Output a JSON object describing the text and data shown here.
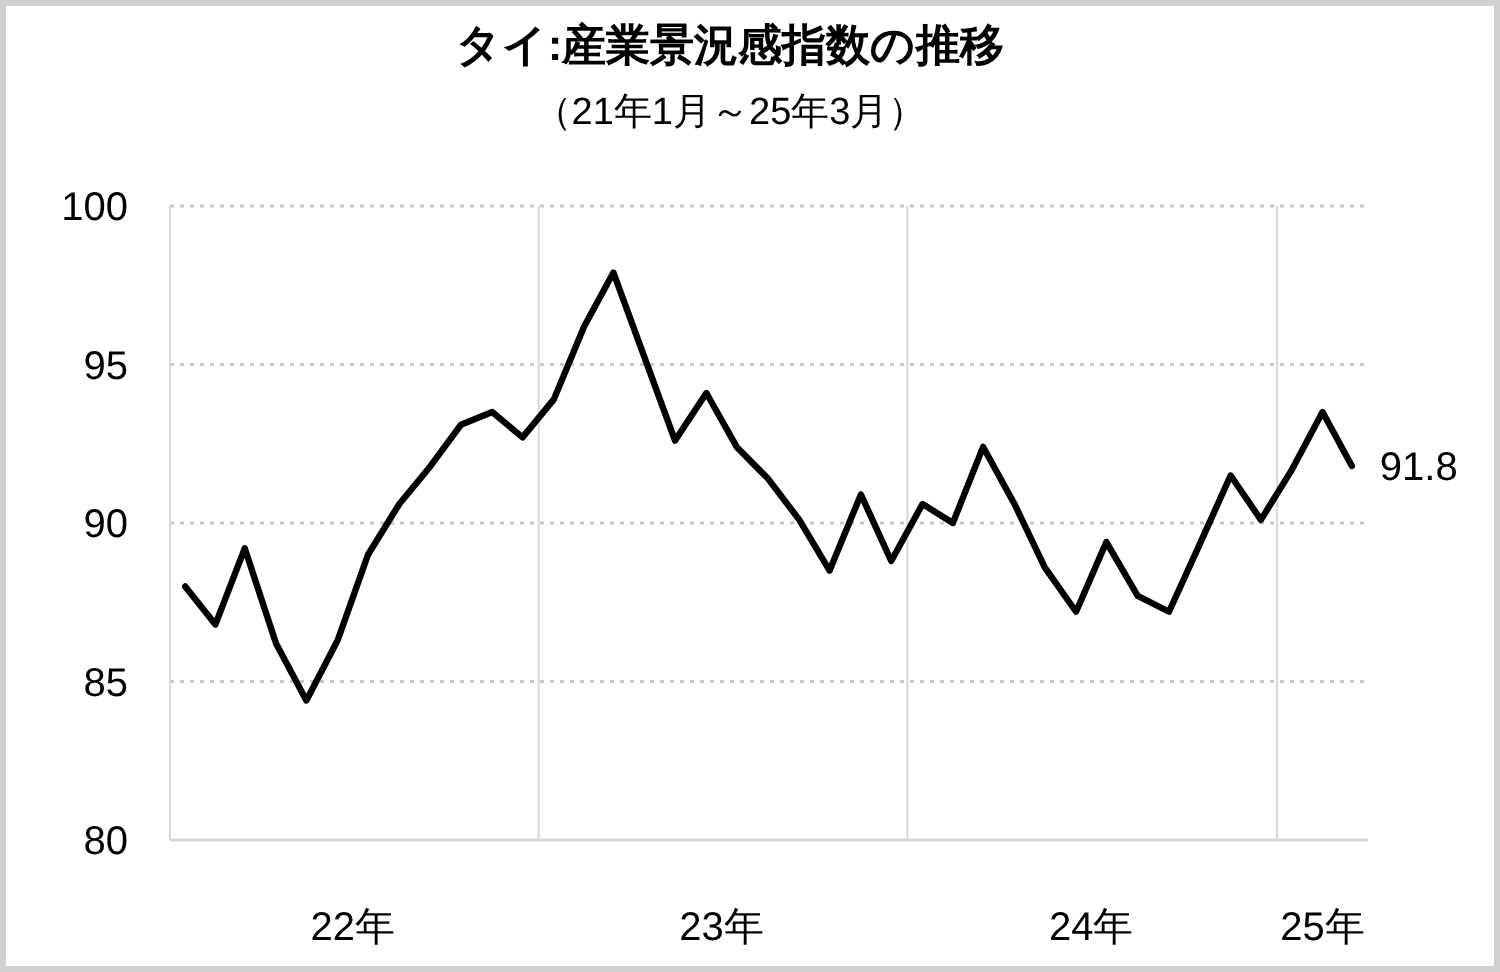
{
  "chart_data": {
    "type": "line",
    "title": "タイ:産業景況感指数の推移",
    "subtitle": "（21年1月～25年3月）",
    "x": [
      "2022-01-16",
      "2022-02-15",
      "2022-03-16",
      "2022-04-16",
      "2022-05-16",
      "2022-06-16",
      "2022-07-16",
      "2022-08-16",
      "2022-09-16",
      "2022-10-16",
      "2022-11-16",
      "2022-12-16",
      "2023-01-16",
      "2023-02-15",
      "2023-03-16",
      "2023-04-16",
      "2023-05-16",
      "2023-06-16",
      "2023-07-16",
      "2023-08-16",
      "2023-09-16",
      "2023-10-16",
      "2023-11-16",
      "2023-12-16",
      "2024-01-16",
      "2024-02-15",
      "2024-03-16",
      "2024-04-16",
      "2024-05-16",
      "2024-06-16",
      "2024-07-16",
      "2024-08-16",
      "2024-09-16",
      "2024-10-16",
      "2024-11-16",
      "2024-12-16",
      "2025-01-16",
      "2025-02-15",
      "2025-03-16"
    ],
    "series": [
      {
        "color": "#000000",
        "values": [
          88.0,
          86.8,
          89.2,
          86.2,
          84.4,
          86.3,
          89.0,
          90.6,
          91.8,
          93.1,
          93.5,
          92.7,
          93.9,
          96.2,
          97.9,
          95.2,
          92.6,
          94.1,
          92.4,
          91.4,
          90.1,
          88.5,
          90.9,
          88.8,
          90.6,
          90.0,
          92.4,
          90.6,
          88.6,
          87.2,
          89.4,
          87.7,
          87.2,
          89.3,
          91.5,
          90.1,
          91.7,
          93.5,
          91.8
        ]
      }
    ],
    "xlim": [
      "2022-01-01",
      "2025-04-01"
    ],
    "xticks": [
      {
        "value": "2022-07-01",
        "label": "22年"
      },
      {
        "value": "2023-01-01",
        "label": null
      },
      {
        "value": "2023-07-01",
        "label": "23年"
      },
      {
        "value": "2024-01-01",
        "label": null
      },
      {
        "value": "2024-07-01",
        "label": "24年"
      },
      {
        "value": "2025-01-01",
        "label": null
      },
      {
        "value": "2025-02-15",
        "label": "25年"
      }
    ],
    "ylim": [
      80,
      100
    ],
    "yticks": [
      80,
      85,
      90,
      95,
      100
    ],
    "grid": true,
    "marker": "none",
    "line_style": "solid",
    "annotations": [
      {
        "text": "91.8",
        "x": "2025-03-16",
        "y": 91.8
      }
    ]
  }
}
